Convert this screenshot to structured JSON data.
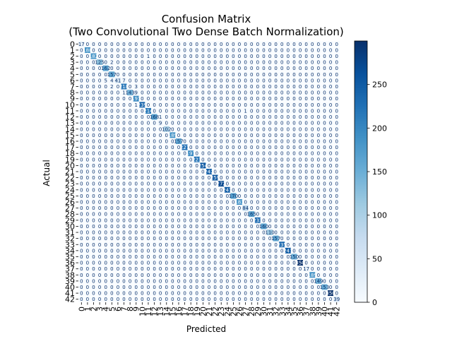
{
  "chart_data": {
    "type": "heatmap",
    "title": "Confusion Matrix",
    "subtitle": "(Two Convolutional Two Dense Batch Normalization)",
    "xlabel": "Predicted",
    "ylabel": "Actual",
    "classes": [
      "0",
      "1",
      "2",
      "3",
      "4",
      "5",
      "6",
      "7",
      "8",
      "9",
      "10",
      "11",
      "12",
      "13",
      "14",
      "15",
      "16",
      "17",
      "18",
      "19",
      "20",
      "21",
      "22",
      "23",
      "24",
      "25",
      "26",
      "27",
      "28",
      "29",
      "30",
      "31",
      "32",
      "33",
      "34",
      "35",
      "36",
      "37",
      "38",
      "39",
      "40",
      "41",
      "42"
    ],
    "diagonal": [
      17,
      188,
      182,
      125,
      162,
      157,
      41,
      218,
      143,
      197,
      239,
      214,
      168,
      9,
      102,
      189,
      157,
      227,
      197,
      223,
      254,
      242,
      259,
      272,
      247,
      170,
      183,
      84,
      165,
      233,
      160,
      110,
      157,
      235,
      247,
      150,
      350,
      17,
      189,
      149,
      153,
      350,
      39
    ],
    "off_diagonal": [
      {
        "actual": 2,
        "predicted": 11,
        "value": 1
      },
      {
        "actual": 3,
        "predicted": 5,
        "value": 2
      },
      {
        "actual": 6,
        "predicted": 4,
        "value": 5
      },
      {
        "actual": 6,
        "predicted": 5,
        "value": 4
      },
      {
        "actual": 6,
        "predicted": 7,
        "value": 7
      },
      {
        "actual": 7,
        "predicted": 5,
        "value": 2
      },
      {
        "actual": 7,
        "predicted": 9,
        "value": 3
      },
      {
        "actual": 8,
        "predicted": 7,
        "value": 1
      },
      {
        "actual": 8,
        "predicted": 9,
        "value": 9
      },
      {
        "actual": 10,
        "predicted": 9,
        "value": 1
      },
      {
        "actual": 11,
        "predicted": 27,
        "value": 1
      },
      {
        "actual": 12,
        "predicted": 13,
        "value": 1
      }
    ],
    "colorbar": {
      "min": 0,
      "max": 300,
      "ticks": [
        0,
        50,
        100,
        150,
        200,
        250
      ]
    },
    "colormap": "Blues",
    "colors": {
      "low": "#f7fbff",
      "high": "#08306b",
      "grid": "#ffffff",
      "text_dark": "#08306b",
      "text_light": "#ffffff"
    }
  }
}
